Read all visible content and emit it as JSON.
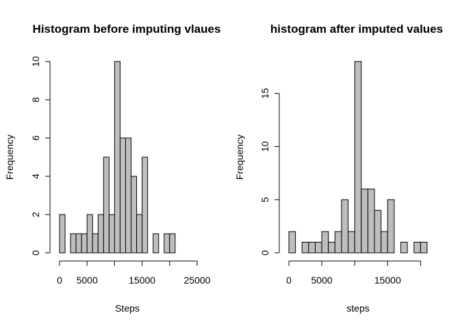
{
  "chart_data": [
    {
      "type": "bar",
      "title": "Histogram before imputing vlaues",
      "xlabel": "Steps",
      "ylabel": "Frequency",
      "bin_width": 1000,
      "x_start": 0,
      "values": [
        2,
        0,
        1,
        1,
        1,
        2,
        1,
        2,
        5,
        2,
        10,
        6,
        6,
        4,
        2,
        5,
        0,
        1,
        0,
        1,
        1
      ],
      "xlim": [
        0,
        25000
      ],
      "ylim": [
        0,
        10
      ],
      "x_ticks": [
        0,
        5000,
        15000,
        25000
      ],
      "x_tick_lines": [
        0,
        5000,
        10000,
        15000,
        20000,
        25000
      ],
      "y_ticks": [
        0,
        2,
        4,
        6,
        8,
        10
      ]
    },
    {
      "type": "bar",
      "title": "histogram after imputed values",
      "xlabel": "steps",
      "ylabel": "Frequency",
      "bin_width": 1000,
      "x_start": 0,
      "values": [
        2,
        0,
        1,
        1,
        1,
        2,
        1,
        2,
        5,
        2,
        18,
        6,
        6,
        4,
        2,
        5,
        0,
        1,
        0,
        1,
        1
      ],
      "xlim": [
        0,
        21000
      ],
      "ylim": [
        0,
        18
      ],
      "x_ticks": [
        0,
        5000,
        15000
      ],
      "x_tick_lines": [
        0,
        5000,
        10000,
        15000,
        20000
      ],
      "y_ticks": [
        0,
        5,
        10,
        15
      ]
    }
  ]
}
